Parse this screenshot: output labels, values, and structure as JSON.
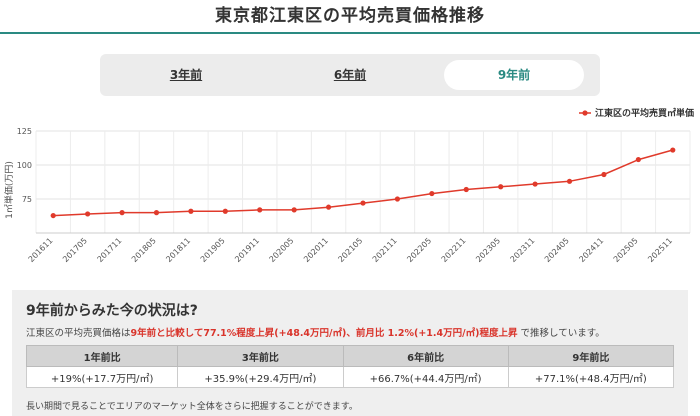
{
  "page": {
    "title": "東京都江東区の平均売買価格推移"
  },
  "tabs": [
    {
      "label": "3年前",
      "active": false
    },
    {
      "label": "6年前",
      "active": false
    },
    {
      "label": "9年前",
      "active": true
    }
  ],
  "colors": {
    "accent": "#2a8a82",
    "series": "#e03a2b",
    "highlight": "#d9342b"
  },
  "chart_data": {
    "type": "line",
    "ylabel": "1㎡単価(万円)",
    "ylim": [
      50,
      125
    ],
    "yticks": [
      75,
      100,
      125
    ],
    "grid": true,
    "legend_position": "top-right",
    "x": [
      "201611",
      "201705",
      "201711",
      "201805",
      "201811",
      "201905",
      "201911",
      "202005",
      "202011",
      "202105",
      "202111",
      "202205",
      "202211",
      "202305",
      "202311",
      "202405",
      "202411",
      "202505",
      "202511"
    ],
    "series": [
      {
        "name": "江東区の平均売買㎡単価",
        "values": [
          62.8,
          64,
          65,
          65,
          66,
          66,
          67,
          67,
          69,
          72,
          75,
          79,
          82,
          84,
          86,
          88,
          93,
          104,
          111
        ]
      }
    ]
  },
  "summary": {
    "title": "9年前からみた今の状況は?",
    "text_prefix": "江東区の平均売買価格は",
    "text_highlight1": "9年前と比較して77.1%程度上昇(+48.4万円/㎡)、前月比 1.2%(+1.4万円/㎡)程度上昇",
    "text_suffix": " で推移しています。",
    "headers": [
      "1年前比",
      "3年前比",
      "6年前比",
      "9年前比"
    ],
    "values": [
      "+19%(+17.7万円/㎡)",
      "+35.9%(+29.4万円/㎡)",
      "+66.7%(+44.4万円/㎡)",
      "+77.1%(+48.4万円/㎡)"
    ],
    "footnote": "長い期間で見ることでエリアのマーケット全体をさらに把握することができます。"
  }
}
